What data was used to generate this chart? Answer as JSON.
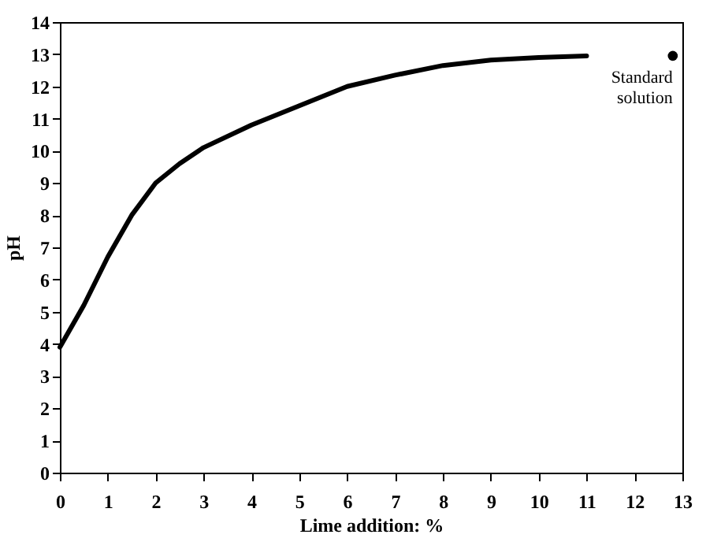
{
  "chart_data": {
    "type": "line",
    "xlabel": "Lime addition: %",
    "ylabel": "pH",
    "xlim": [
      0,
      13
    ],
    "ylim": [
      0,
      14
    ],
    "xticks": [
      0,
      1,
      2,
      3,
      4,
      5,
      6,
      7,
      8,
      9,
      10,
      11,
      12,
      13
    ],
    "yticks": [
      0,
      1,
      2,
      3,
      4,
      5,
      6,
      7,
      8,
      9,
      10,
      11,
      12,
      13,
      14
    ],
    "grid": false,
    "series": [
      {
        "type": "line",
        "color": "#000000",
        "x": [
          0,
          0.5,
          1,
          1.5,
          2,
          2.5,
          3,
          4,
          5,
          6,
          7,
          8,
          9,
          10,
          11
        ],
        "values": [
          3.9,
          5.2,
          6.7,
          8.0,
          9.0,
          9.6,
          10.1,
          10.8,
          11.4,
          12.0,
          12.35,
          12.65,
          12.82,
          12.9,
          12.95
        ]
      },
      {
        "type": "scatter",
        "color": "#000000",
        "marker": "circle",
        "x": [
          12.8
        ],
        "values": [
          12.95
        ]
      }
    ],
    "annotations": [
      {
        "text": "Standard solution",
        "x": 12.8,
        "y": 12.95
      }
    ]
  }
}
